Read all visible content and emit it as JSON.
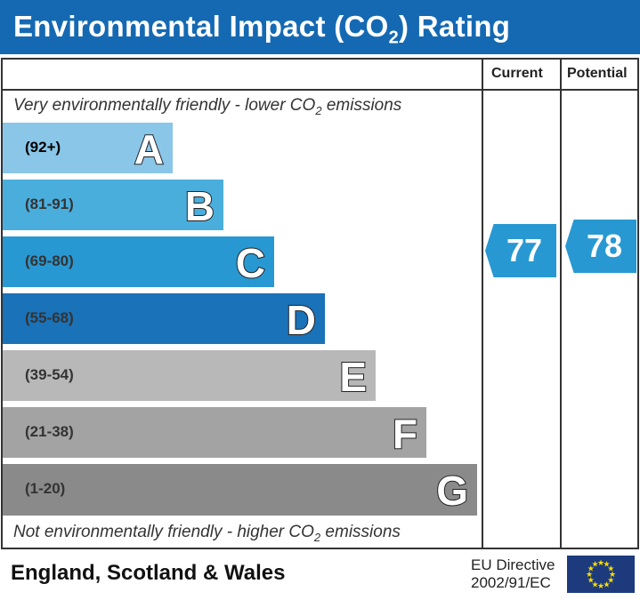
{
  "header": {
    "title": "Environmental Impact (CO",
    "title_sub": "2",
    "title_end": ") Rating"
  },
  "columns": {
    "current": "Current",
    "potential": "Potential"
  },
  "notes": {
    "top": "Very environmentally friendly - lower CO",
    "top_sub": "2",
    "top_end": " emissions",
    "bottom": "Not environmentally friendly - higher CO",
    "bottom_sub": "2",
    "bottom_end": " emissions"
  },
  "chart_data": {
    "type": "bar",
    "bands": [
      {
        "letter": "A",
        "range": "(92+)",
        "color": "#8ac6e8"
      },
      {
        "letter": "B",
        "range": "(81-91)",
        "color": "#4aaedd"
      },
      {
        "letter": "C",
        "range": "(69-80)",
        "color": "#2898d2"
      },
      {
        "letter": "D",
        "range": "(55-68)",
        "color": "#1a72b8"
      },
      {
        "letter": "E",
        "range": "(39-54)",
        "color": "#b8b8b8"
      },
      {
        "letter": "F",
        "range": "(21-38)",
        "color": "#a3a3a3"
      },
      {
        "letter": "G",
        "range": "(1-20)",
        "color": "#8a8a8a"
      }
    ],
    "current": {
      "value": "77",
      "band": "C",
      "color": "#2898d2"
    },
    "potential": {
      "value": "78",
      "band": "C",
      "color": "#2898d2"
    }
  },
  "footer": {
    "region": "England, Scotland & Wales",
    "directive_line1": "EU Directive",
    "directive_line2": "2002/91/EC",
    "flag": "eu-flag-icon"
  }
}
